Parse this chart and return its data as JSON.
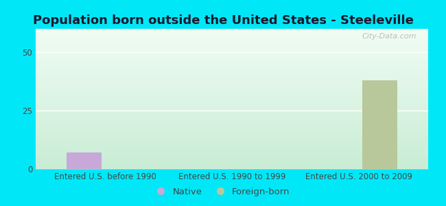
{
  "title": "Population born outside the United States - Steeleville",
  "categories": [
    "Entered U.S. before 1990",
    "Entered U.S. 1990 to 1999",
    "Entered U.S. 2000 to 2009"
  ],
  "native_values": [
    7,
    0,
    0
  ],
  "foreign_values": [
    0,
    0,
    38
  ],
  "native_color": "#c8a8d8",
  "foreign_color": "#b8c89a",
  "ylim": [
    0,
    60
  ],
  "yticks": [
    0,
    25,
    50
  ],
  "background_outer": "#00e8f8",
  "background_top_color": "#e8f8f0",
  "background_bottom_color": "#d0f0d8",
  "grid_color": "#e0e8e0",
  "title_fontsize": 13,
  "tick_fontsize": 8.5,
  "legend_fontsize": 9.5,
  "watermark": "City-Data.com",
  "bar_width": 0.28
}
